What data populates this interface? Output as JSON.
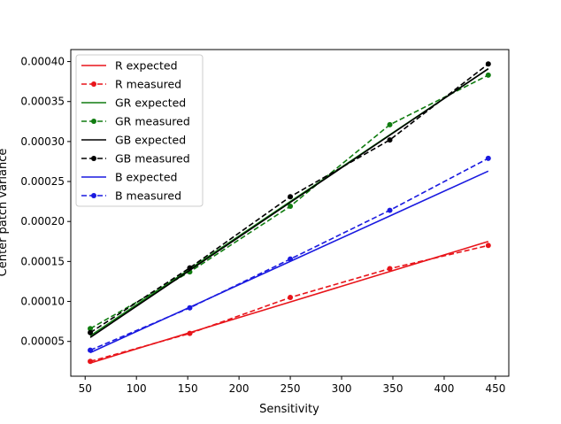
{
  "chart_data": {
    "type": "line",
    "title": "",
    "xlabel": "Sensitivity",
    "ylabel": "Center patch variance",
    "xlim": [
      36,
      463
    ],
    "ylim": [
      6.5e-06,
      0.000415
    ],
    "xticks": [
      50,
      100,
      150,
      200,
      250,
      300,
      350,
      400,
      450
    ],
    "xtick_labels": [
      "50",
      "100",
      "150",
      "200",
      "250",
      "300",
      "350",
      "400",
      "450"
    ],
    "yticks": [
      5e-05,
      0.0001,
      0.00015,
      0.0002,
      0.00025,
      0.0003,
      0.00035,
      0.0004
    ],
    "ytick_labels": [
      "0.00005",
      "0.00010",
      "0.00015",
      "0.00020",
      "0.00025",
      "0.00030",
      "0.00035",
      "0.00040"
    ],
    "grid": false,
    "legend_position": "top-left",
    "x": [
      55,
      152,
      250,
      347,
      443
    ],
    "series": [
      {
        "name": "R expected",
        "color": "#e8141a",
        "style": "solid",
        "markers": false,
        "values": [
          2.3e-05,
          6.1e-05,
          9.94e-05,
          0.0001374,
          0.000175
        ]
      },
      {
        "name": "R measured",
        "color": "#e8141a",
        "style": "dashed",
        "markers": true,
        "values": [
          2.5e-05,
          6e-05,
          0.000105,
          0.000141,
          0.00017
        ]
      },
      {
        "name": "GR expected",
        "color": "#107c10",
        "style": "solid",
        "markers": false,
        "values": [
          5.7e-05,
          0.0001405,
          0.0002249,
          0.0003084,
          0.000391
        ]
      },
      {
        "name": "GR measured",
        "color": "#107c10",
        "style": "dashed",
        "markers": true,
        "values": [
          6.6e-05,
          0.000137,
          0.000219,
          0.000321,
          0.000383
        ]
      },
      {
        "name": "GB expected",
        "color": "#000000",
        "style": "solid",
        "markers": false,
        "values": [
          5.5e-05,
          0.000139,
          0.0002239,
          0.0003079,
          0.000391
        ]
      },
      {
        "name": "GB measured",
        "color": "#000000",
        "style": "dashed",
        "markers": true,
        "values": [
          6.1e-05,
          0.000142,
          0.000231,
          0.000302,
          0.000397
        ]
      },
      {
        "name": "B expected",
        "color": "#1a1ae0",
        "style": "solid",
        "markers": false,
        "values": [
          3.6e-05,
          9.28e-05,
          0.0001501,
          0.0002069,
          0.000263
        ]
      },
      {
        "name": "B measured",
        "color": "#1a1ae0",
        "style": "dashed",
        "markers": true,
        "values": [
          3.9e-05,
          9.2e-05,
          0.000153,
          0.000214,
          0.000279
        ]
      }
    ]
  }
}
